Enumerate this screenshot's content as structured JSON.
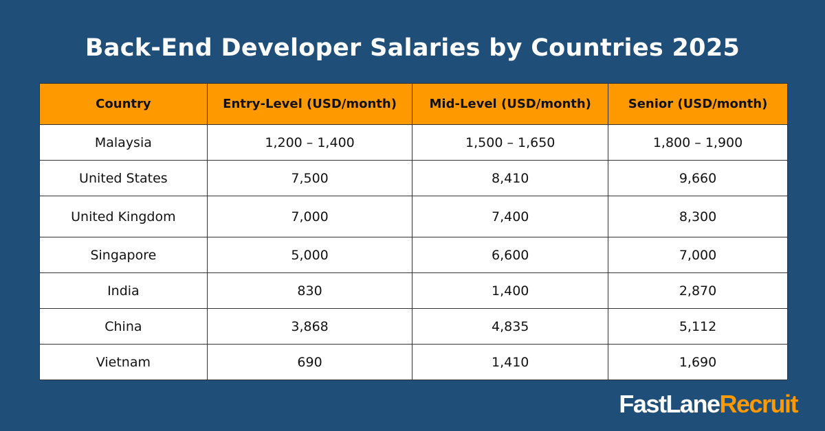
{
  "title": "Back-End Developer Salaries by Countries 2025",
  "colors": {
    "background": "#1f4e79",
    "header": "#ff9900",
    "accent": "#ff9900"
  },
  "table": {
    "headers": [
      "Country",
      "Entry-Level (USD/month)",
      "Mid-Level (USD/month)",
      "Senior (USD/month)"
    ],
    "rows": [
      [
        "Malaysia",
        "1,200 – 1,400",
        "1,500 – 1,650",
        "1,800 – 1,900"
      ],
      [
        "United States",
        "7,500",
        "8,410",
        "9,660"
      ],
      [
        "United Kingdom",
        "7,000",
        "7,400",
        "8,300"
      ],
      [
        "Singapore",
        "5,000",
        "6,600",
        "7,000"
      ],
      [
        "India",
        "830",
        "1,400",
        "2,870"
      ],
      [
        "China",
        "3,868",
        "4,835",
        "5,112"
      ],
      [
        "Vietnam",
        "690",
        "1,410",
        "1,690"
      ]
    ]
  },
  "logo": {
    "part1": "FastLane",
    "part2": "Recruit"
  }
}
